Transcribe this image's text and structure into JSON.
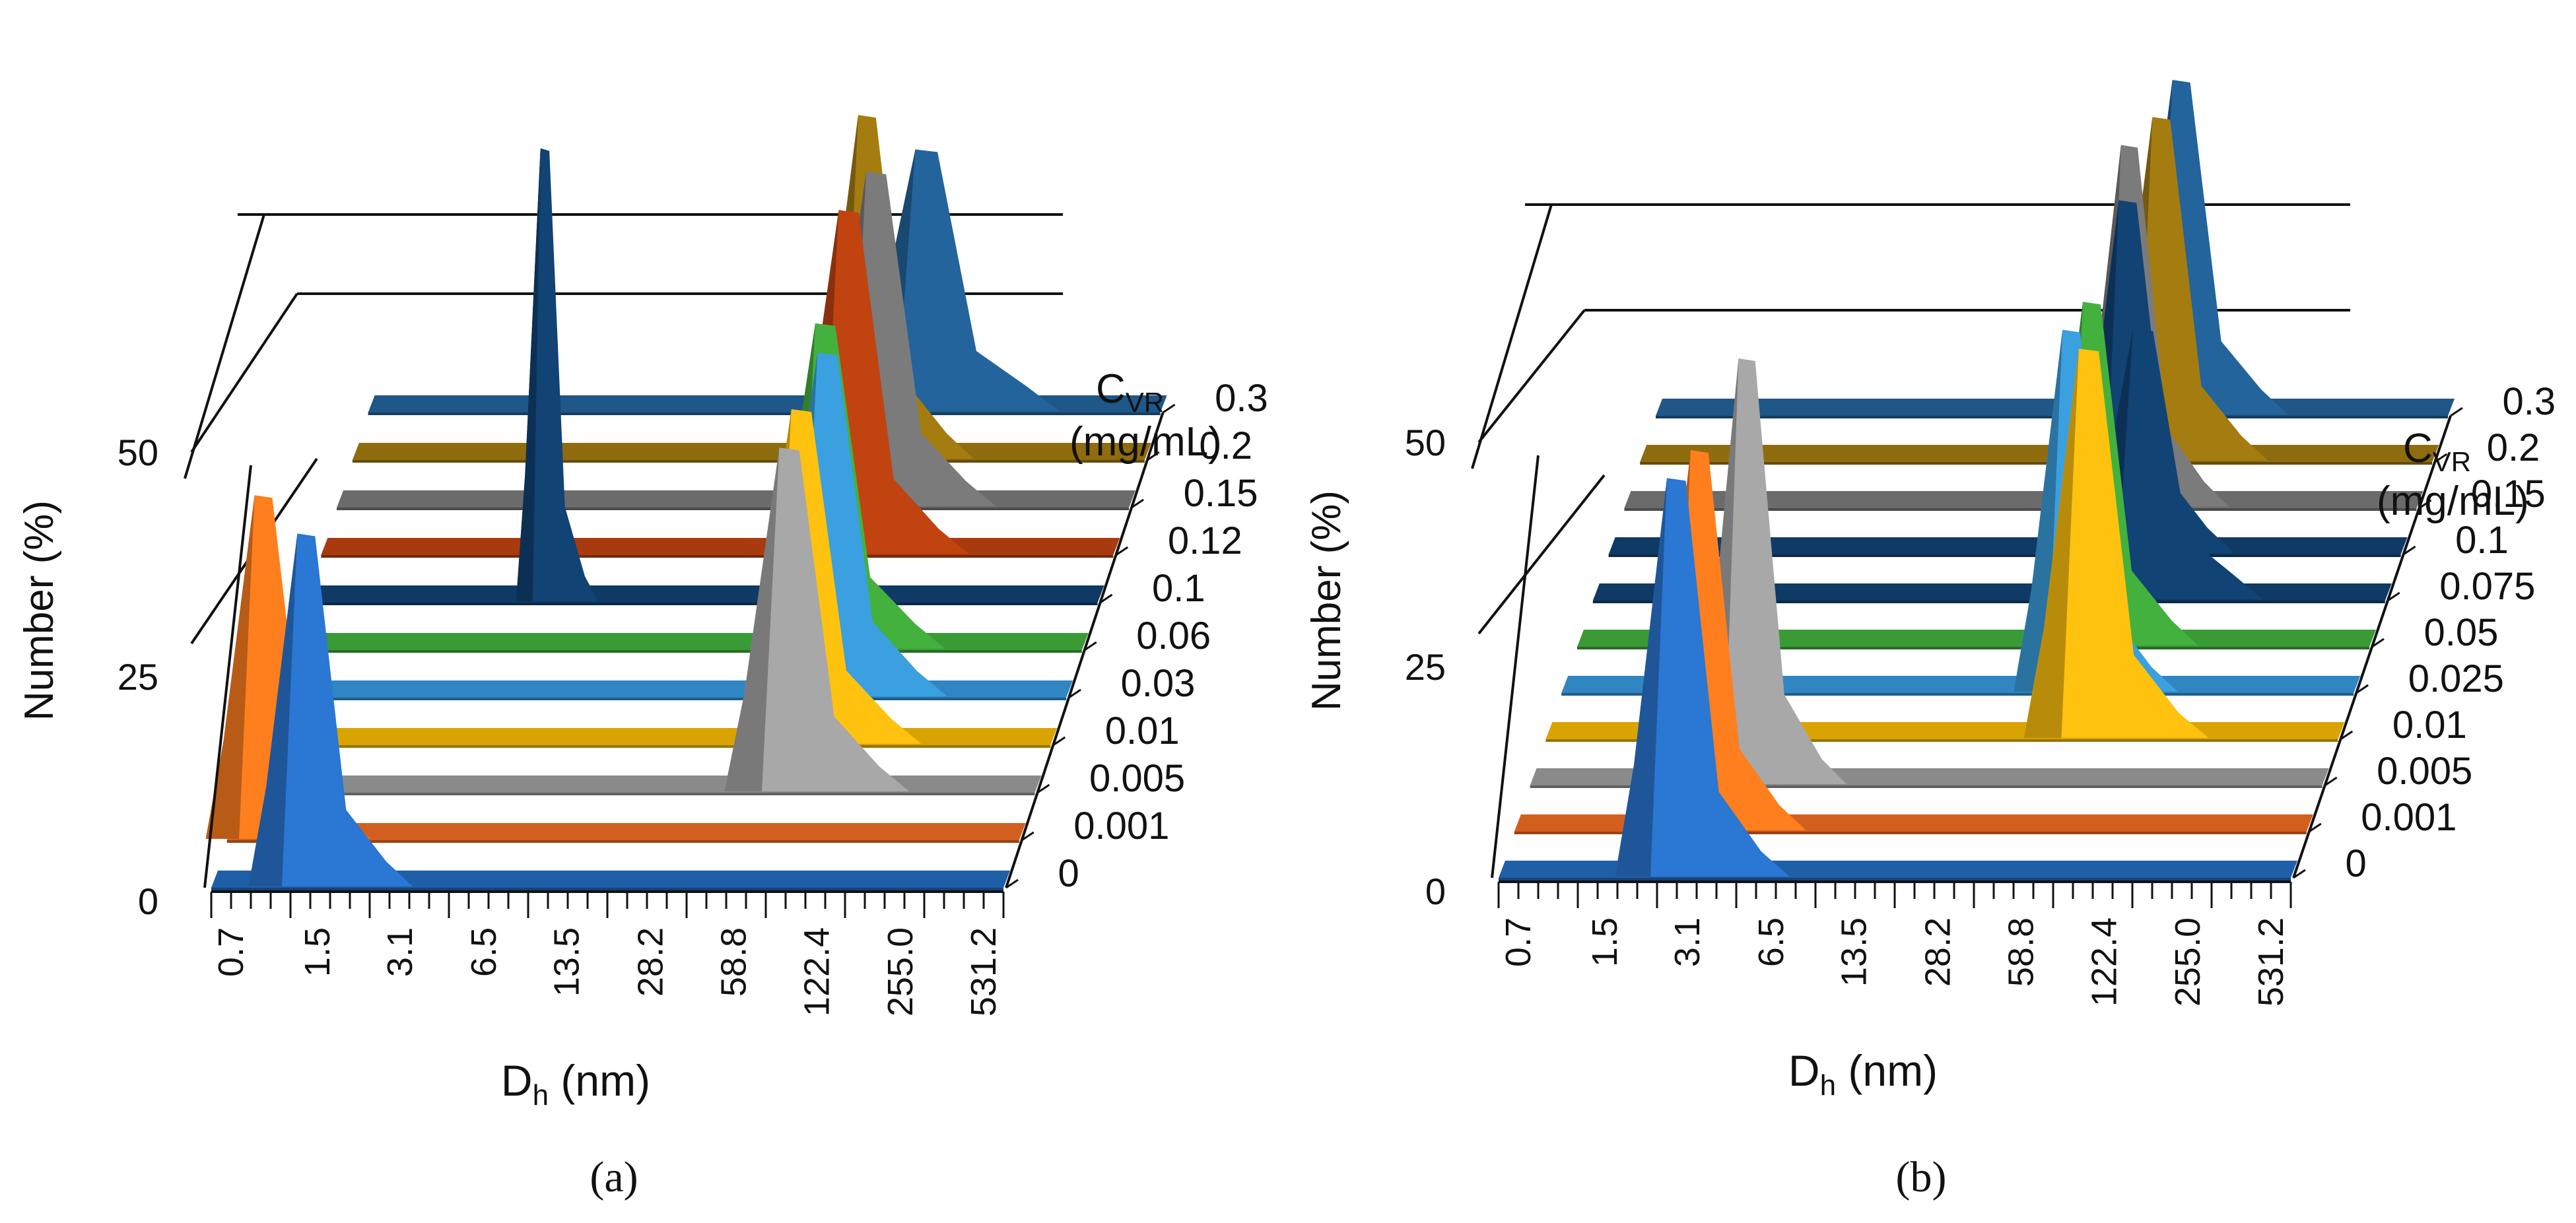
{
  "colors": {
    "0": "#1f5fa8",
    "0.001": "#d35f1f",
    "0.005": "#8a8a8a",
    "0.01": "#d9a400",
    "0.025": "#2f86c2",
    "0.03": "#2f86c2",
    "0.05": "#3a9a36",
    "0.06": "#3a9a36",
    "0.075": "#0f3a66",
    "0.1": "#0f3a66",
    "0.12": "#a83a0e",
    "0.15": "#6b6b6b",
    "0.2": "#8f6c0e",
    "0.3": "#1e5788",
    "peak_orange": "#ff7f1e",
    "peak_blue": "#2a77d4",
    "peak_gray": "#a8a8a8",
    "peak_yellow": "#ffc20e",
    "peak_light_blue": "#3aa0e0"
  },
  "chart_data": [
    {
      "type": "waterfall3d",
      "panel": "a",
      "caption": "(a)",
      "xlabel": "D",
      "xlabel_sub": "h",
      "xlabel_unit": " (nm)",
      "ylabel": "Number (%)",
      "y_ticks": [
        "0",
        "25",
        "50"
      ],
      "ylim": [
        0,
        75
      ],
      "x_tick_labels": [
        "0.7",
        "1.5",
        "3.1",
        "6.5",
        "13.5",
        "28.2",
        "58.8",
        "122.4",
        "255.0",
        "531.2"
      ],
      "z_title_main": "C",
      "z_title_sub": "VR",
      "z_title_unit": "(mg/mL)",
      "series": [
        {
          "name": "0",
          "peaks": [
            {
              "x": 1.55,
              "h": 37,
              "w": 0.16,
              "color": "peak_blue"
            }
          ]
        },
        {
          "name": "0.001",
          "peaks": [
            {
              "x": 0.95,
              "h": 36,
              "w": 0.16,
              "color": "peak_orange"
            }
          ]
        },
        {
          "name": "0.005",
          "peaks": [
            {
              "x": 68,
              "h": 36,
              "w": 0.18,
              "color": "peak_gray"
            }
          ]
        },
        {
          "name": "0.01",
          "peaks": [
            {
              "x": 66,
              "h": 35,
              "w": 0.18,
              "color": "peak_yellow"
            }
          ]
        },
        {
          "name": "0.03",
          "peaks": [
            {
              "x": 72,
              "h": 36,
              "w": 0.18,
              "color": "peak_light_blue"
            }
          ]
        },
        {
          "name": "0.06",
          "peaks": [
            {
              "x": 62,
              "h": 34,
              "w": 0.18
            }
          ]
        },
        {
          "name": "0.1",
          "peaks": [
            {
              "x": 5.2,
              "h": 48,
              "w": 0.08
            }
          ]
        },
        {
          "name": "0.12",
          "peaks": [
            {
              "x": 58,
              "h": 36,
              "w": 0.18
            }
          ]
        },
        {
          "name": "0.15",
          "peaks": [
            {
              "x": 64,
              "h": 35,
              "w": 0.18
            }
          ]
        },
        {
          "name": "0.2",
          "peaks": [
            {
              "x": 52,
              "h": 36,
              "w": 0.16
            }
          ]
        },
        {
          "name": "0.3",
          "peaks": [
            {
              "x": 75,
              "h": 27,
              "w": 0.2
            }
          ]
        }
      ]
    },
    {
      "type": "waterfall3d",
      "panel": "b",
      "caption": "(b)",
      "xlabel": "D",
      "xlabel_sub": "h",
      "xlabel_unit": " (nm)",
      "ylabel": "Number (%)",
      "y_ticks": [
        "0",
        "25",
        "50"
      ],
      "ylim": [
        0,
        75
      ],
      "x_tick_labels": [
        "0.7",
        "1.5",
        "3.1",
        "6.5",
        "13.5",
        "28.2",
        "58.8",
        "122.4",
        "255.0",
        "531.2"
      ],
      "z_title_main": "C",
      "z_title_sub": "VR",
      "z_title_unit": "(mg/mL)",
      "series": [
        {
          "name": "0",
          "peaks": [
            {
              "x": 3.1,
              "h": 42,
              "w": 0.17,
              "color": "peak_blue"
            }
          ]
        },
        {
          "name": "0.001",
          "peaks": [
            {
              "x": 3.3,
              "h": 40,
              "w": 0.16,
              "color": "peak_orange"
            }
          ]
        },
        {
          "name": "0.005",
          "peaks": [
            {
              "x": 4.3,
              "h": 45,
              "w": 0.15,
              "color": "peak_gray"
            }
          ]
        },
        {
          "name": "0.01",
          "peaks": [
            {
              "x": 66,
              "h": 41,
              "w": 0.18,
              "color": "peak_yellow"
            }
          ]
        },
        {
          "name": "0.025",
          "peaks": [
            {
              "x": 50,
              "h": 38,
              "w": 0.16,
              "color": "peak_light_blue"
            }
          ]
        },
        {
          "name": "0.05",
          "peaks": [
            {
              "x": 52,
              "h": 36,
              "w": 0.16
            }
          ]
        },
        {
          "name": "0.075",
          "peaks": [
            {
              "x": 70,
              "h": 28,
              "w": 0.18
            }
          ]
        },
        {
          "name": "0.1",
          "peaks": [
            {
              "x": 54,
              "h": 37,
              "w": 0.16
            }
          ]
        },
        {
          "name": "0.15",
          "peaks": [
            {
              "x": 48,
              "h": 38,
              "w": 0.15
            }
          ]
        },
        {
          "name": "0.2",
          "peaks": [
            {
              "x": 55,
              "h": 36,
              "w": 0.16
            }
          ]
        },
        {
          "name": "0.3",
          "peaks": [
            {
              "x": 57,
              "h": 35,
              "w": 0.16
            }
          ]
        }
      ]
    }
  ]
}
